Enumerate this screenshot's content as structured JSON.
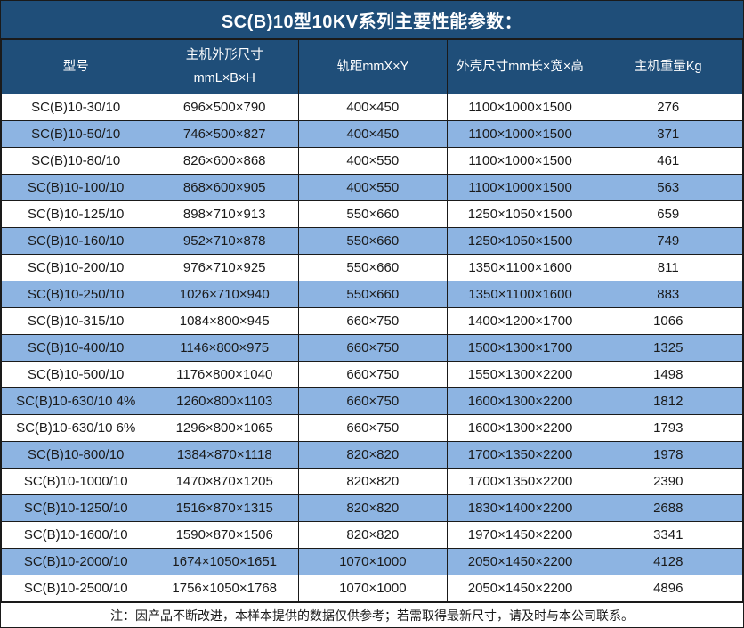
{
  "title": "SC(B)10型10KV系列主要性能参数：",
  "note": "注：因产品不断改进，本样本提供的数据仅供参考；若需取得最新尺寸，请及时与本公司联系。",
  "colors": {
    "header_bg": "#1F4E79",
    "row_alt_bg": "#8DB4E2",
    "border": "#1A1A1A",
    "text": "#1A1A1A",
    "header_text": "#FFFFFF"
  },
  "table": {
    "columns": [
      {
        "lines": [
          "型号"
        ]
      },
      {
        "lines": [
          "主机外形尺寸",
          "mmL×B×H"
        ]
      },
      {
        "lines": [
          "轨距mmX×Y"
        ]
      },
      {
        "lines": [
          "外壳尺寸mm长×宽×高"
        ]
      },
      {
        "lines": [
          "主机重量Kg"
        ]
      }
    ],
    "rows": [
      [
        "SC(B)10-30/10",
        "696×500×790",
        "400×450",
        "1100×1000×1500",
        "276"
      ],
      [
        "SC(B)10-50/10",
        "746×500×827",
        "400×450",
        "1100×1000×1500",
        "371"
      ],
      [
        "SC(B)10-80/10",
        "826×600×868",
        "400×550",
        "1100×1000×1500",
        "461"
      ],
      [
        "SC(B)10-100/10",
        "868×600×905",
        "400×550",
        "1100×1000×1500",
        "563"
      ],
      [
        "SC(B)10-125/10",
        "898×710×913",
        "550×660",
        "1250×1050×1500",
        "659"
      ],
      [
        "SC(B)10-160/10",
        "952×710×878",
        "550×660",
        "1250×1050×1500",
        "749"
      ],
      [
        "SC(B)10-200/10",
        "976×710×925",
        "550×660",
        "1350×1100×1600",
        "811"
      ],
      [
        "SC(B)10-250/10",
        "1026×710×940",
        "550×660",
        "1350×1100×1600",
        "883"
      ],
      [
        "SC(B)10-315/10",
        "1084×800×945",
        "660×750",
        "1400×1200×1700",
        "1066"
      ],
      [
        "SC(B)10-400/10",
        "1146×800×975",
        "660×750",
        "1500×1300×1700",
        "1325"
      ],
      [
        "SC(B)10-500/10",
        "1176×800×1040",
        "660×750",
        "1550×1300×2200",
        "1498"
      ],
      [
        "SC(B)10-630/10 4%",
        "1260×800×1103",
        "660×750",
        "1600×1300×2200",
        "1812"
      ],
      [
        "SC(B)10-630/10 6%",
        "1296×800×1065",
        "660×750",
        "1600×1300×2200",
        "1793"
      ],
      [
        "SC(B)10-800/10",
        "1384×870×1118",
        "820×820",
        "1700×1350×2200",
        "1978"
      ],
      [
        "SC(B)10-1000/10",
        "1470×870×1205",
        "820×820",
        "1700×1350×2200",
        "2390"
      ],
      [
        "SC(B)10-1250/10",
        "1516×870×1315",
        "820×820",
        "1830×1400×2200",
        "2688"
      ],
      [
        "SC(B)10-1600/10",
        "1590×870×1506",
        "820×820",
        "1970×1450×2200",
        "3341"
      ],
      [
        "SC(B)10-2000/10",
        "1674×1050×1651",
        "1070×1000",
        "2050×1450×2200",
        "4128"
      ],
      [
        "SC(B)10-2500/10",
        "1756×1050×1768",
        "1070×1000",
        "2050×1450×2200",
        "4896"
      ]
    ]
  }
}
